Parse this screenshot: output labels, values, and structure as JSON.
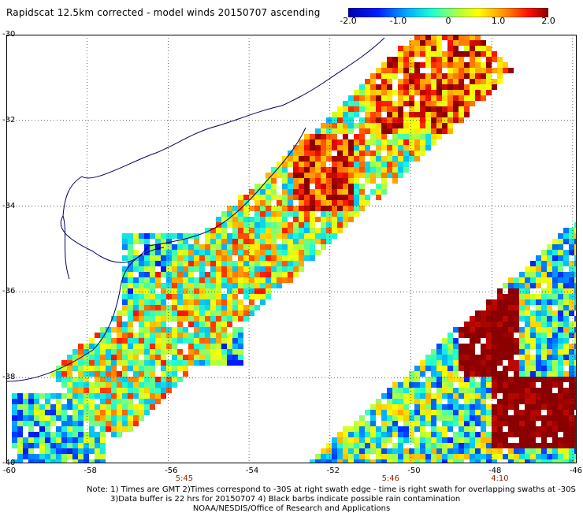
{
  "title": "Rapidscat 12.5km corrected - model winds 20150707 ascending",
  "colorbar": {
    "labels": [
      "-2.0",
      "-1.0",
      "0",
      "1.0",
      "2.0"
    ],
    "values": [
      -2.0,
      -1.0,
      0,
      1.0,
      2.0
    ],
    "range": [
      -2.0,
      2.0
    ]
  },
  "chart_data": {
    "type": "heatmap",
    "lat_labels": [
      "-30",
      "-32",
      "-34",
      "-36",
      "-38",
      "-40"
    ],
    "lon_labels": [
      "-60",
      "-58",
      "-56",
      "-54",
      "-52",
      "-50",
      "-48",
      "-46"
    ],
    "lat_range": [
      -40,
      -30
    ],
    "lon_range": [
      -60,
      -45.9
    ],
    "grid": true,
    "swath_times": [
      {
        "label": "5:45",
        "lon": -55.6
      },
      {
        "label": "5:46",
        "lon": -50.5
      },
      {
        "label": "4:10",
        "lon": -47.8
      }
    ]
  },
  "notes": {
    "line1": "Note: 1) Times are GMT 2)Times correspond to -30S at right swath edge - time is right swath for overlapping swaths at -30S",
    "line2": "3)Data buffer is 22 hrs for 20150707 4) Black barbs indicate possible rain contamination",
    "line3": "NOAA/NESDIS/Office of Research and Applications"
  }
}
